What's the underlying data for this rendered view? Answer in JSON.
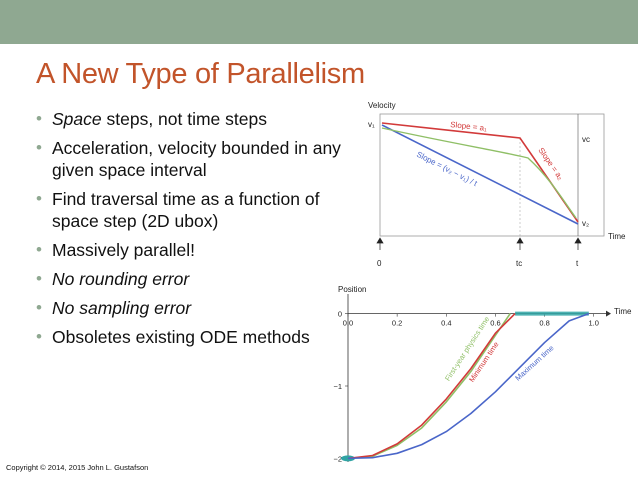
{
  "slide": {
    "title": "A New Type of Parallelism",
    "bullets": [
      {
        "emph": "Space",
        "rest": " steps, not time steps"
      },
      {
        "emph": "",
        "rest": "Acceleration, velocity bounded in any given space interval"
      },
      {
        "emph": "",
        "rest": "Find traversal time as a function of space step (2D ubox)"
      },
      {
        "emph": "",
        "rest": "Massively parallel!"
      },
      {
        "emph": "No rounding error",
        "rest": ""
      },
      {
        "emph": "No sampling error",
        "rest": ""
      },
      {
        "emph": "",
        "rest": "Obsoletes existing ODE methods"
      }
    ],
    "copyright": "Copyright © 2014, 2015 John L. Gustafson"
  },
  "colors": {
    "topbar": "#8fa891",
    "title": "#c2542a",
    "red": "#d23a3a",
    "blue": "#4a66c9",
    "green": "#8fbf66",
    "teal": "#2fa4a4"
  },
  "velocity_chart": {
    "ylabel": "Velocity",
    "xlabel": "Time",
    "y_ticks": [
      "v₁",
      "v₂",
      "vᴄ"
    ],
    "x_ticks": [
      "0",
      "tᴄ",
      "t"
    ],
    "annot_a1": "Slope = a₁",
    "annot_a2": "Slope = a₂",
    "annot_avg": "Slope = (v₂ − v₁) / t"
  },
  "chart_data": {
    "type": "line",
    "title": "",
    "xlabel": "Time",
    "ylabel": "Position",
    "x_ticks": [
      0.0,
      0.2,
      0.4,
      0.6,
      0.8,
      1.0
    ],
    "y_ticks": [
      0,
      -1,
      -2
    ],
    "xlim": [
      0,
      1.05
    ],
    "ylim": [
      -2.05,
      0.05
    ],
    "series": [
      {
        "name": "First-year physics time",
        "color": "green",
        "x": [
          0.0,
          0.1,
          0.2,
          0.3,
          0.4,
          0.5,
          0.6,
          0.66
        ],
        "y": [
          -2.0,
          -1.97,
          -1.82,
          -1.58,
          -1.22,
          -0.8,
          -0.3,
          0.0
        ]
      },
      {
        "name": "Minimum time",
        "color": "red",
        "x": [
          0.0,
          0.1,
          0.2,
          0.3,
          0.4,
          0.5,
          0.6,
          0.68
        ],
        "y": [
          -2.0,
          -1.96,
          -1.8,
          -1.54,
          -1.18,
          -0.76,
          -0.27,
          0.0
        ]
      },
      {
        "name": "Maximum time",
        "color": "blue",
        "x": [
          0.0,
          0.1,
          0.2,
          0.3,
          0.4,
          0.5,
          0.6,
          0.7,
          0.8,
          0.9,
          0.98
        ],
        "y": [
          -2.0,
          -1.99,
          -1.93,
          -1.81,
          -1.63,
          -1.38,
          -1.08,
          -0.74,
          -0.4,
          -0.1,
          0.0
        ]
      }
    ]
  }
}
